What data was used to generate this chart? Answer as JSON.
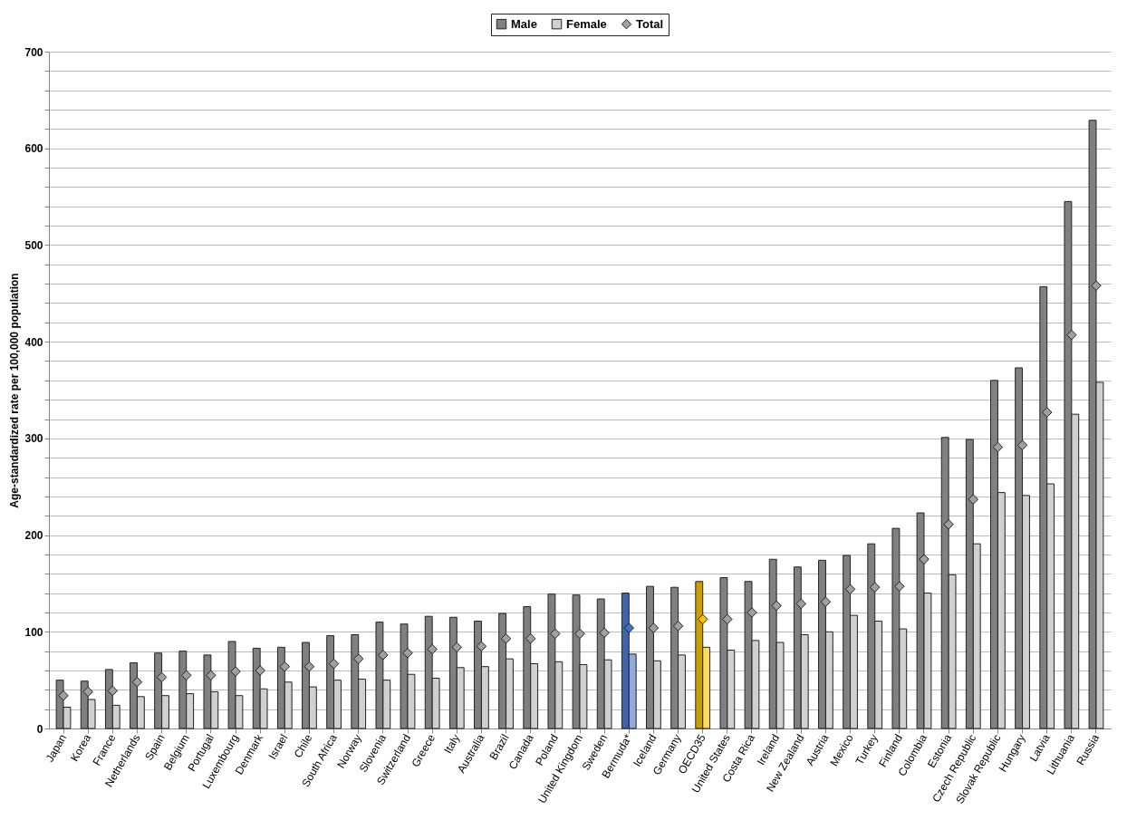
{
  "chart_data": {
    "type": "bar",
    "ylabel": "Age-standardized rate per 100,000 population",
    "legend": "top",
    "grid": "y",
    "ylim": [
      0,
      700
    ],
    "yticks": [
      0,
      {
        "value": 20,
        "label": null
      },
      {
        "value": 40,
        "label": null
      },
      {
        "value": 60,
        "label": null
      },
      {
        "value": 80,
        "label": null
      },
      100,
      {
        "value": 120,
        "label": null
      },
      {
        "value": 140,
        "label": null
      },
      {
        "value": 160,
        "label": null
      },
      {
        "value": 180,
        "label": null
      },
      200,
      {
        "value": 220,
        "label": null
      },
      {
        "value": 240,
        "label": null
      },
      {
        "value": 260,
        "label": null
      },
      {
        "value": 280,
        "label": null
      },
      300,
      {
        "value": 320,
        "label": null
      },
      {
        "value": 340,
        "label": null
      },
      {
        "value": 360,
        "label": null
      },
      {
        "value": 380,
        "label": null
      },
      400,
      {
        "value": 420,
        "label": null
      },
      {
        "value": 440,
        "label": null
      },
      {
        "value": 460,
        "label": null
      },
      {
        "value": 480,
        "label": null
      },
      500,
      {
        "value": 520,
        "label": null
      },
      {
        "value": 540,
        "label": null
      },
      {
        "value": 560,
        "label": null
      },
      {
        "value": 580,
        "label": null
      },
      600,
      {
        "value": 620,
        "label": null
      },
      {
        "value": 640,
        "label": null
      },
      {
        "value": 660,
        "label": null
      },
      {
        "value": 680,
        "label": null
      },
      700
    ],
    "categories": [
      "Japan",
      "Korea",
      "France",
      "Netherlands",
      "Spain",
      "Belgium",
      "Portugal",
      "Luxembourg",
      "Denmark",
      "Israel",
      "Chile",
      "South Africa",
      "Norway",
      "Slovenia",
      "Switzerland",
      "Greece",
      "Italy",
      "Australia",
      "Brazil",
      "Canada",
      "Poland",
      "United Kingdom",
      "Sweden",
      "Bermuda*",
      "Iceland",
      "Germany",
      "OECD35",
      "United States",
      "Costa Rica",
      "Ireland",
      "New Zealand",
      "Austria",
      "Mexico",
      "Turkey",
      "Finland",
      "Colombia",
      "Estonia",
      "Czech Republic",
      "Slovak Republic",
      "Hungary",
      "Latvia",
      "Lithuania",
      "Russia"
    ],
    "series": [
      {
        "name": "Male",
        "type": "bar",
        "color": "#808080",
        "colors": [
          "#808080",
          "#808080",
          "#808080",
          "#808080",
          "#808080",
          "#808080",
          "#808080",
          "#808080",
          "#808080",
          "#808080",
          "#808080",
          "#808080",
          "#808080",
          "#808080",
          "#808080",
          "#808080",
          "#808080",
          "#808080",
          "#808080",
          "#808080",
          "#808080",
          "#808080",
          "#808080",
          "#3f64ab",
          "#808080",
          "#808080",
          "#c9a000",
          "#808080",
          "#808080",
          "#808080",
          "#808080",
          "#808080",
          "#808080",
          "#808080",
          "#808080",
          "#808080",
          "#808080",
          "#808080",
          "#808080",
          "#808080",
          "#808080",
          "#808080",
          "#808080"
        ],
        "values": [
          50,
          49,
          61,
          68,
          78,
          80,
          76,
          90,
          83,
          84,
          89,
          96,
          97,
          110,
          108,
          116,
          115,
          111,
          119,
          126,
          139,
          138,
          134,
          140,
          147,
          146,
          152,
          156,
          152,
          175,
          167,
          174,
          179,
          191,
          207,
          223,
          301,
          299,
          360,
          373,
          457,
          545,
          629
        ]
      },
      {
        "name": "Female",
        "type": "bar",
        "color": "#d0d0d0",
        "colors": [
          "#d0d0d0",
          "#d0d0d0",
          "#d0d0d0",
          "#d0d0d0",
          "#d0d0d0",
          "#d0d0d0",
          "#d0d0d0",
          "#d0d0d0",
          "#d0d0d0",
          "#d0d0d0",
          "#d0d0d0",
          "#d0d0d0",
          "#d0d0d0",
          "#d0d0d0",
          "#d0d0d0",
          "#d0d0d0",
          "#d0d0d0",
          "#d0d0d0",
          "#d0d0d0",
          "#d0d0d0",
          "#d0d0d0",
          "#d0d0d0",
          "#d0d0d0",
          "#8faadc",
          "#d0d0d0",
          "#d0d0d0",
          "#ffd966",
          "#d0d0d0",
          "#d0d0d0",
          "#d0d0d0",
          "#d0d0d0",
          "#d0d0d0",
          "#d0d0d0",
          "#d0d0d0",
          "#d0d0d0",
          "#d0d0d0",
          "#d0d0d0",
          "#d0d0d0",
          "#d0d0d0",
          "#d0d0d0",
          "#d0d0d0",
          "#d0d0d0",
          "#d0d0d0"
        ],
        "values": [
          22,
          30,
          24,
          33,
          34,
          36,
          38,
          34,
          41,
          48,
          43,
          50,
          51,
          50,
          56,
          52,
          63,
          64,
          72,
          67,
          69,
          66,
          71,
          77,
          70,
          76,
          84,
          81,
          91,
          89,
          97,
          100,
          117,
          111,
          103,
          140,
          159,
          191,
          244,
          241,
          253,
          325,
          358
        ]
      },
      {
        "name": "Total",
        "type": "scatter",
        "marker": "diamond",
        "color": "#a0a0a0",
        "colors": [
          "#a0a0a0",
          "#a0a0a0",
          "#a0a0a0",
          "#a0a0a0",
          "#a0a0a0",
          "#a0a0a0",
          "#a0a0a0",
          "#a0a0a0",
          "#a0a0a0",
          "#a0a0a0",
          "#a0a0a0",
          "#a0a0a0",
          "#a0a0a0",
          "#a0a0a0",
          "#a0a0a0",
          "#a0a0a0",
          "#a0a0a0",
          "#a0a0a0",
          "#a0a0a0",
          "#a0a0a0",
          "#a0a0a0",
          "#a0a0a0",
          "#a0a0a0",
          "#4472c4",
          "#a0a0a0",
          "#a0a0a0",
          "#ffc000",
          "#a0a0a0",
          "#a0a0a0",
          "#a0a0a0",
          "#a0a0a0",
          "#a0a0a0",
          "#a0a0a0",
          "#a0a0a0",
          "#a0a0a0",
          "#a0a0a0",
          "#a0a0a0",
          "#a0a0a0",
          "#a0a0a0",
          "#a0a0a0",
          "#a0a0a0",
          "#a0a0a0",
          "#a0a0a0"
        ],
        "values": [
          34,
          38,
          39,
          48,
          53,
          55,
          55,
          59,
          60,
          64,
          64,
          67,
          72,
          76,
          78,
          82,
          84,
          85,
          93,
          93,
          98,
          98,
          99,
          104,
          104,
          106,
          113,
          113,
          120,
          127,
          129,
          131,
          144,
          146,
          147,
          175,
          211,
          237,
          291,
          293,
          327,
          407,
          458
        ]
      }
    ]
  }
}
